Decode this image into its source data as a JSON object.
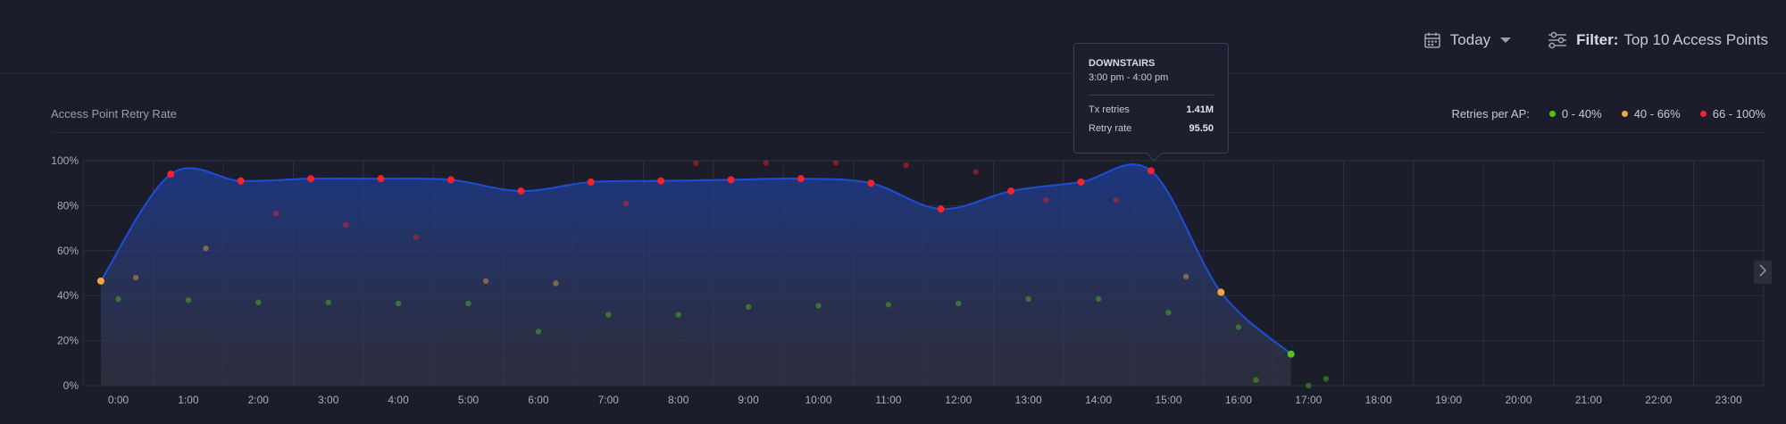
{
  "toolbar": {
    "date_label": "Today",
    "filter_label": "Filter:",
    "filter_value": "Top 10 Access Points"
  },
  "card": {
    "title": "Access Point Retry Rate"
  },
  "legend": {
    "title": "Retries per AP:",
    "items": [
      {
        "label": "0 - 40%",
        "color": "#52c41a"
      },
      {
        "label": "40 - 66%",
        "color": "#f5a53d"
      },
      {
        "label": "66 - 100%",
        "color": "#f5222d"
      }
    ]
  },
  "tooltip": {
    "name": "DOWNSTAIRS",
    "time": "3:00 pm - 4:00 pm",
    "rows": [
      {
        "label": "Tx retries",
        "value": "1.41M"
      },
      {
        "label": "Retry rate",
        "value": "95.50"
      }
    ]
  },
  "chart_data": {
    "type": "line",
    "x_ticks": [
      "0:00",
      "1:00",
      "2:00",
      "3:00",
      "4:00",
      "5:00",
      "6:00",
      "7:00",
      "8:00",
      "9:00",
      "10:00",
      "11:00",
      "12:00",
      "13:00",
      "14:00",
      "15:00",
      "16:00",
      "17:00",
      "18:00",
      "19:00",
      "20:00",
      "21:00",
      "22:00",
      "23:00"
    ],
    "y_ticks": [
      "0%",
      "20%",
      "40%",
      "60%",
      "80%",
      "100%"
    ],
    "ylim": [
      0,
      100
    ],
    "grid": true,
    "legend_position": "top-right",
    "colors": {
      "line": "#1c4fd6",
      "low": "#52c41a",
      "mid": "#f5a53d",
      "high": "#f5222d"
    },
    "series": [
      {
        "x": [
          -0.25,
          0.75,
          1.75,
          2.75,
          3.75,
          4.75,
          5.75,
          6.75,
          7.75,
          8.75,
          9.75,
          10.75,
          11.75,
          12.75,
          13.75,
          14.75,
          15.75,
          16.75
        ],
        "values": [
          46.5,
          94,
          91,
          92,
          92,
          91.5,
          86.5,
          90.5,
          91,
          91.5,
          92,
          90,
          78.5,
          86.5,
          90.5,
          95.5,
          41.5,
          14
        ]
      },
      {
        "x": [
          0,
          0.25,
          1,
          1.25,
          2,
          2.25,
          3,
          3.25,
          4,
          4.25,
          5,
          5.25,
          6,
          6.25,
          7,
          7.25,
          8,
          8.25,
          9,
          9.25,
          10,
          10.25,
          11,
          11.25,
          12,
          12.25,
          13,
          13.25,
          14,
          14.25,
          15,
          15.25,
          16,
          16.25,
          17,
          17.25
        ],
        "values": [
          38.5,
          48,
          38,
          61,
          37,
          76.5,
          37,
          71.5,
          36.5,
          66,
          36.5,
          46.5,
          24,
          45.5,
          31.5,
          81,
          31.5,
          99,
          35,
          99,
          35.5,
          99,
          36,
          98,
          36.5,
          95,
          38.5,
          82.5,
          38.5,
          82.5,
          32.5,
          48.5,
          26,
          2.5,
          0,
          3
        ]
      }
    ]
  }
}
